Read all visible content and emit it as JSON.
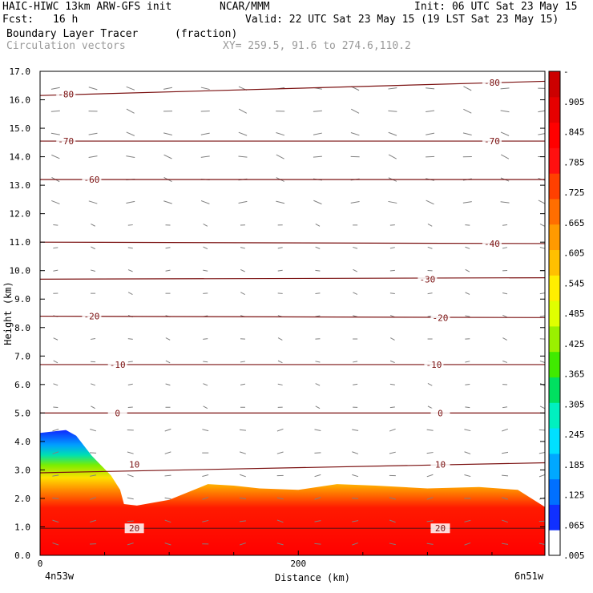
{
  "header": {
    "model": "HAIC-HIWC 13km ARW-GFS init",
    "org": "NCAR/MMM",
    "init": "Init: 06 UTC Sat 23 May 15",
    "fcst_label": "Fcst:",
    "fcst_value": "16 h",
    "valid": "Valid: 22 UTC Sat 23 May 15 (19 LST Sat 23 May 15)",
    "field": "Boundary Layer Tracer",
    "field_units": "(fraction)",
    "overlay": "Circulation vectors",
    "xy": "XY= 259.5, 91.6 to 274.6,110.2"
  },
  "colors": {
    "contour": "#7a1010",
    "vector": "#808080",
    "axis": "#000000"
  },
  "chart_data": {
    "type": "heatmap",
    "title": "Boundary Layer Tracer",
    "units": "(fraction)",
    "xlabel": "Distance (km)",
    "ylabel": "Height (km)",
    "xlim": [
      0,
      391
    ],
    "ylim": [
      0,
      17
    ],
    "x_ticks": [
      0,
      200
    ],
    "x_end_labels": [
      "4n53w",
      "6n51w"
    ],
    "y_ticks": [
      "0.0",
      "1.0",
      "2.0",
      "3.0",
      "4.0",
      "5.0",
      "6.0",
      "7.0",
      "8.0",
      "9.0",
      "10.0",
      "11.0",
      "12.0",
      "13.0",
      "14.0",
      "15.0",
      "16.0",
      "17.0"
    ],
    "colorbar": {
      "labels": [
        ".005",
        ".065",
        ".125",
        ".185",
        ".245",
        ".305",
        ".365",
        ".425",
        ".485",
        ".545",
        ".605",
        ".665",
        ".725",
        ".785",
        ".845",
        ".905",
        "-"
      ],
      "colors": [
        "#ffffff",
        "#1030ff",
        "#0070ff",
        "#00a8ff",
        "#00e0ff",
        "#00f0c0",
        "#00e060",
        "#40ea00",
        "#9af000",
        "#e0ff00",
        "#ffee00",
        "#ffc000",
        "#ff9a00",
        "#ff6e00",
        "#ff4000",
        "#ff1010",
        "#ff0000",
        "#e60000",
        "#cc0000"
      ]
    },
    "tracer_top_km": [
      [
        0,
        4.3
      ],
      [
        20,
        4.4
      ],
      [
        28,
        4.2
      ],
      [
        40,
        3.5
      ],
      [
        55,
        2.8
      ],
      [
        62,
        2.3
      ],
      [
        65,
        1.8
      ],
      [
        75,
        1.75
      ],
      [
        100,
        1.95
      ],
      [
        130,
        2.5
      ],
      [
        150,
        2.45
      ],
      [
        170,
        2.35
      ],
      [
        200,
        2.3
      ],
      [
        230,
        2.5
      ],
      [
        260,
        2.45
      ],
      [
        300,
        2.35
      ],
      [
        340,
        2.4
      ],
      [
        370,
        2.3
      ],
      [
        391,
        1.7
      ]
    ],
    "isotherms_degC": [
      {
        "label": "-80",
        "height_km": [
          16.15,
          16.65
        ]
      },
      {
        "label": "-70",
        "height_km": [
          14.55,
          14.55
        ]
      },
      {
        "label": "-60",
        "height_km": [
          13.2,
          13.2
        ]
      },
      {
        "label": "-40",
        "height_km": [
          11.0,
          10.95
        ]
      },
      {
        "label": "-30",
        "height_km": [
          9.7,
          9.75
        ]
      },
      {
        "label": "-20",
        "height_km": [
          8.4,
          8.35
        ]
      },
      {
        "label": "-10",
        "height_km": [
          6.7,
          6.7
        ]
      },
      {
        "label": "0",
        "height_km": [
          5.0,
          5.0
        ]
      },
      {
        "label": "10",
        "height_km": [
          2.9,
          3.25
        ]
      },
      {
        "label": "20",
        "height_km": [
          0.95,
          0.95
        ]
      }
    ],
    "contour_labels": [
      {
        "text": "-80",
        "x_km": 20,
        "y_km": 16.2
      },
      {
        "text": "-80",
        "x_km": 350,
        "y_km": 16.6
      },
      {
        "text": "-70",
        "x_km": 20,
        "y_km": 14.55
      },
      {
        "text": "-70",
        "x_km": 350,
        "y_km": 14.55
      },
      {
        "text": "-60",
        "x_km": 40,
        "y_km": 13.2
      },
      {
        "text": "-40",
        "x_km": 350,
        "y_km": 10.95
      },
      {
        "text": "-30",
        "x_km": 300,
        "y_km": 9.7
      },
      {
        "text": "-20",
        "x_km": 40,
        "y_km": 8.4
      },
      {
        "text": "-20",
        "x_km": 310,
        "y_km": 8.35
      },
      {
        "text": "-10",
        "x_km": 60,
        "y_km": 6.7
      },
      {
        "text": "-10",
        "x_km": 305,
        "y_km": 6.7
      },
      {
        "text": "0",
        "x_km": 60,
        "y_km": 5.0
      },
      {
        "text": "0",
        "x_km": 310,
        "y_km": 5.0
      },
      {
        "text": "10",
        "x_km": 73,
        "y_km": 3.2
      },
      {
        "text": "10",
        "x_km": 310,
        "y_km": 3.2
      },
      {
        "text": "20",
        "x_km": 73,
        "y_km": 0.95
      },
      {
        "text": "20",
        "x_km": 310,
        "y_km": 0.95
      }
    ]
  }
}
